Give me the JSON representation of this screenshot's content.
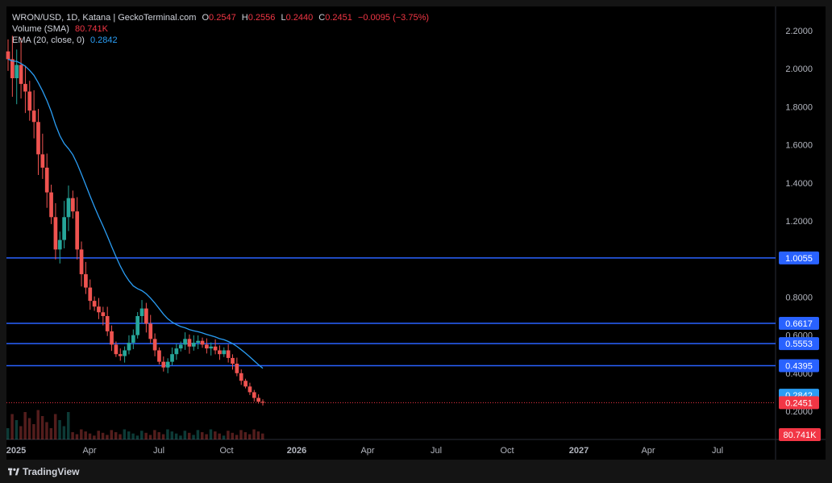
{
  "header": {
    "symbol": "WRON/USD, 1D, Katana | GeckoTerminal.com",
    "o_label": "O",
    "o_value": "0.2547",
    "h_label": "H",
    "h_value": "0.2556",
    "l_label": "L",
    "l_value": "0.2440",
    "c_label": "C",
    "c_value": "0.2451",
    "change": "−0.0095 (−3.75%)"
  },
  "indicators": {
    "volume_label": "Volume (SMA)",
    "volume_value": "80.741K",
    "ema_label": "EMA (20, close, 0)",
    "ema_value": "0.2842"
  },
  "brand": {
    "name": "TradingView"
  },
  "colors": {
    "up": "#26a69a",
    "down": "#ef5350",
    "ema": "#2a9df4",
    "level": "#2962ff",
    "price_badge": "#f23645"
  },
  "chart_data": {
    "type": "candlestick",
    "interval": "1D",
    "y_ticks": [
      "2.2000",
      "2.0000",
      "1.8000",
      "1.6000",
      "1.4000",
      "1.2000",
      "0.8000",
      "0.6000",
      "0.4000",
      "0.2000"
    ],
    "x_ticks": [
      "2025",
      "Apr",
      "Jul",
      "Oct",
      "2026",
      "Apr",
      "Jul",
      "Oct",
      "2027",
      "Apr",
      "Jul"
    ],
    "ylim": [
      0.08,
      2.31
    ],
    "horizontal_levels": [
      {
        "value": 1.0055,
        "label": "1.0055"
      },
      {
        "value": 0.6617,
        "label": "0.6617"
      },
      {
        "value": 0.5553,
        "label": "0.5553"
      },
      {
        "value": 0.4395,
        "label": "0.4395"
      }
    ],
    "ema_last": {
      "value": 0.2842,
      "label": "0.2842"
    },
    "last_price": {
      "value": 0.2451,
      "label": "0.2451"
    },
    "volume_badge": "80.741K",
    "close_series": [
      2.05,
      1.95,
      2.02,
      1.92,
      1.88,
      1.78,
      1.72,
      1.55,
      1.48,
      1.35,
      1.22,
      1.05,
      1.1,
      1.22,
      1.32,
      1.25,
      1.05,
      0.92,
      0.85,
      0.78,
      0.75,
      0.72,
      0.7,
      0.62,
      0.55,
      0.5,
      0.49,
      0.52,
      0.56,
      0.6,
      0.7,
      0.74,
      0.66,
      0.58,
      0.52,
      0.46,
      0.43,
      0.46,
      0.5,
      0.53,
      0.55,
      0.58,
      0.54,
      0.56,
      0.57,
      0.55,
      0.53,
      0.54,
      0.52,
      0.5,
      0.52,
      0.48,
      0.45,
      0.4,
      0.36,
      0.33,
      0.3,
      0.27,
      0.25,
      0.2451
    ]
  }
}
